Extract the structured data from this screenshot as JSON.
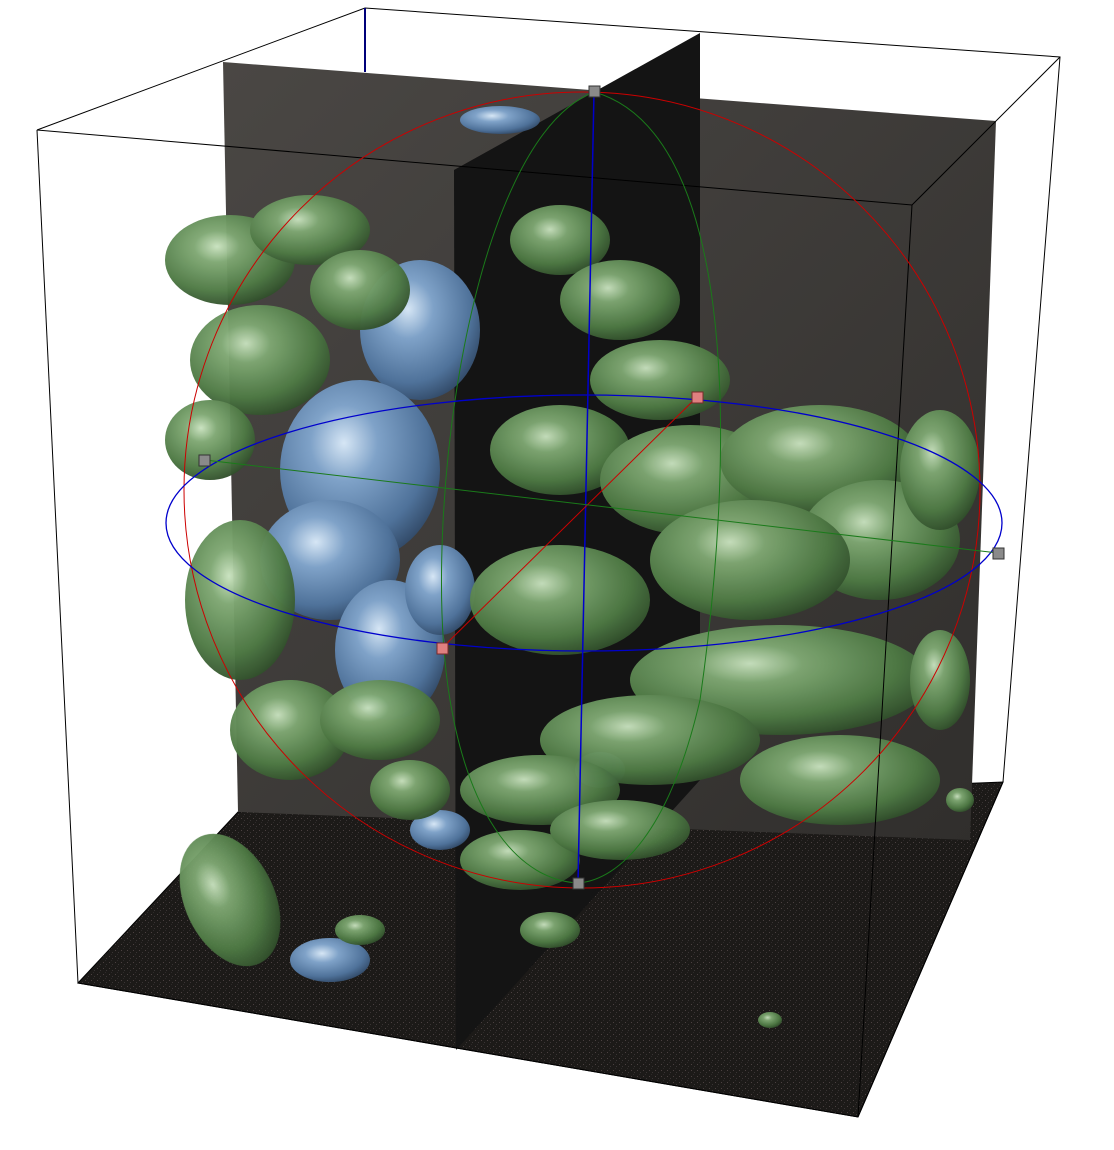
{
  "viewer": {
    "background_color": "#ffffff",
    "bounding_box_color": "#000000",
    "slice_color": "#383634",
    "slice_dark_color": "#141414",
    "floor_color": "#1c1a18",
    "isosurface_primary_color": "#5f8a55",
    "isosurface_secondary_color": "#5a7fa8",
    "manipulator": {
      "x_ring_color": "#cc0000",
      "y_ring_color": "#1a7a1a",
      "z_ring_color": "#0000cc",
      "handle_color": "#8a8a8a",
      "handle_selected_color": "#e08080"
    }
  }
}
